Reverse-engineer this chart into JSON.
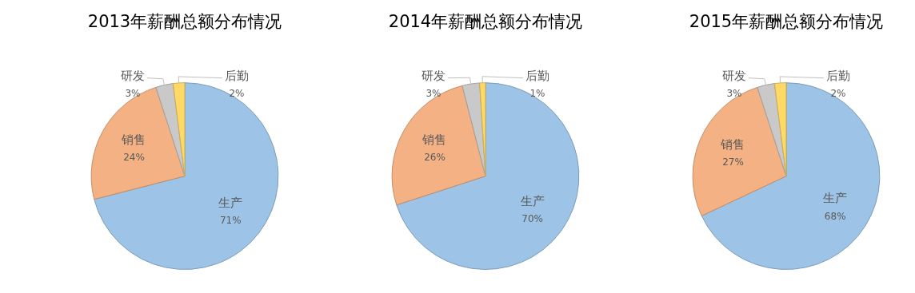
{
  "chart_data": [
    {
      "type": "pie",
      "title": "2013年薪酬总额分布情况",
      "categories": [
        "生产",
        "销售",
        "研发",
        "后勤"
      ],
      "values": [
        71,
        24,
        3,
        2
      ],
      "value_labels": [
        "71%",
        "24%",
        "3%",
        "2%"
      ],
      "colors": [
        "#9dc3e6",
        "#f4b183",
        "#c9c9c9",
        "#ffd966"
      ]
    },
    {
      "type": "pie",
      "title": "2014年薪酬总额分布情况",
      "categories": [
        "生产",
        "销售",
        "研发",
        "后勤"
      ],
      "values": [
        70,
        26,
        3,
        1
      ],
      "value_labels": [
        "70%",
        "26%",
        "3%",
        "1%"
      ],
      "colors": [
        "#9dc3e6",
        "#f4b183",
        "#c9c9c9",
        "#ffd966"
      ]
    },
    {
      "type": "pie",
      "title": "2015年薪酬总额分布情况",
      "categories": [
        "生产",
        "销售",
        "研发",
        "后勤"
      ],
      "values": [
        68,
        27,
        3,
        2
      ],
      "value_labels": [
        "68%",
        "27%",
        "3%",
        "2%"
      ],
      "colors": [
        "#9dc3e6",
        "#f4b183",
        "#c9c9c9",
        "#ffd966"
      ]
    }
  ]
}
